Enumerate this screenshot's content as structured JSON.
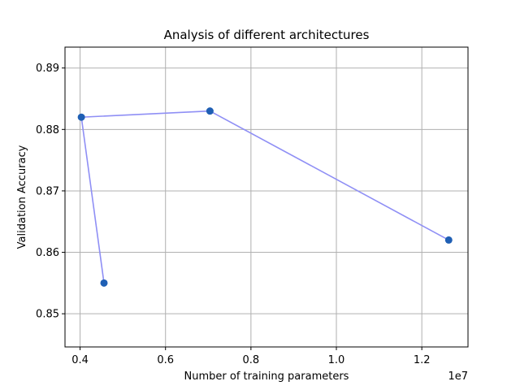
{
  "chart_data": {
    "type": "line",
    "title": "Analysis of different architectures",
    "xlabel": "Number of training parameters",
    "ylabel": "Validation Accuracy",
    "x_offset_label": "1e7",
    "xlim": [
      0.3647,
      1.3081
    ],
    "ylim": [
      0.8446,
      0.8934
    ],
    "xticks": [
      0.4,
      0.6,
      0.8,
      1.0,
      1.2
    ],
    "xtick_labels": [
      "0.4",
      "0.6",
      "0.8",
      "1.0",
      "1.2"
    ],
    "yticks": [
      0.85,
      0.86,
      0.87,
      0.88,
      0.89
    ],
    "ytick_labels": [
      "0.85",
      "0.86",
      "0.87",
      "0.88",
      "0.89"
    ],
    "grid": true,
    "series": [
      {
        "x": [
          0.456,
          0.403,
          0.704,
          1.263
        ],
        "y": [
          0.855,
          0.882,
          0.883,
          0.862
        ],
        "line_color": "#8f8ff5",
        "marker_color": "#1f5fb4"
      }
    ]
  }
}
